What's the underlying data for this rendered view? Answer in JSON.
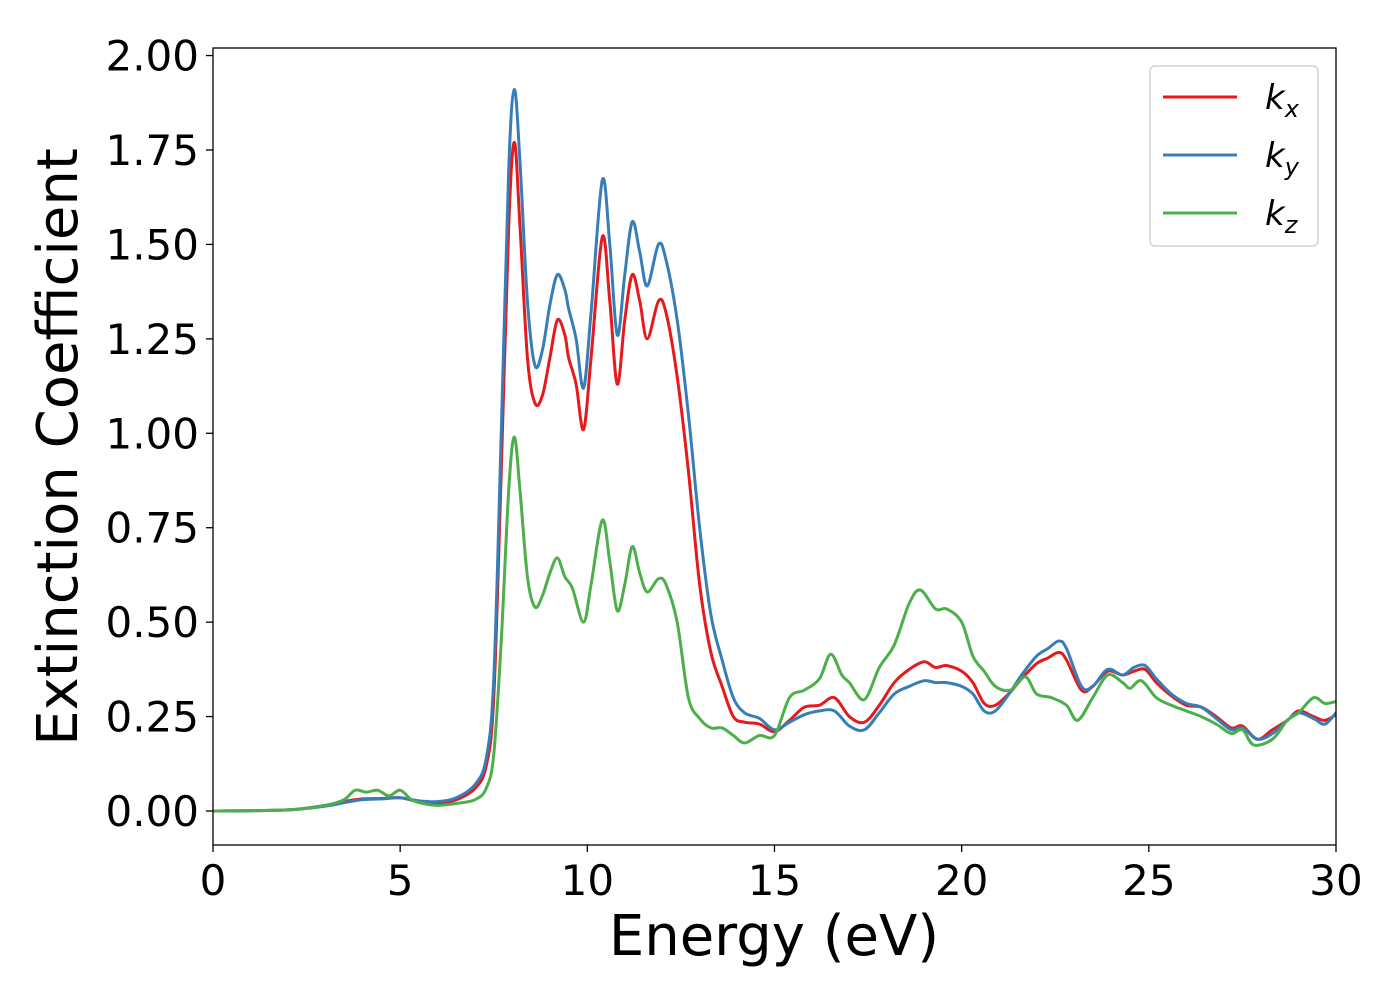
{
  "chart_data": {
    "type": "line",
    "title": "",
    "xlabel": "Energy (eV)",
    "ylabel": "Extinction Coefficient",
    "xlim": [
      0,
      30
    ],
    "ylim": [
      -0.09,
      2.02
    ],
    "xticks": [
      0,
      5,
      10,
      15,
      20,
      25,
      30
    ],
    "yticks": [
      0.0,
      0.25,
      0.5,
      0.75,
      1.0,
      1.25,
      1.5,
      1.75,
      2.0
    ],
    "xtick_labels": [
      "0",
      "5",
      "10",
      "15",
      "20",
      "25",
      "30"
    ],
    "ytick_labels": [
      "0.00",
      "0.25",
      "0.50",
      "0.75",
      "1.00",
      "1.25",
      "1.50",
      "1.75",
      "2.00"
    ],
    "grid": false,
    "legend_position": "top-right",
    "series": [
      {
        "name": "k_x",
        "base": "k",
        "sub": "x",
        "color": "#e41a1c",
        "points": [
          [
            0,
            0
          ],
          [
            2,
            0.003
          ],
          [
            3,
            0.015
          ],
          [
            3.5,
            0.025
          ],
          [
            4,
            0.032
          ],
          [
            4.5,
            0.033
          ],
          [
            5,
            0.035
          ],
          [
            5.5,
            0.025
          ],
          [
            6,
            0.022
          ],
          [
            6.5,
            0.03
          ],
          [
            7,
            0.06
          ],
          [
            7.3,
            0.12
          ],
          [
            7.5,
            0.3
          ],
          [
            7.7,
            0.9
          ],
          [
            7.9,
            1.55
          ],
          [
            8.05,
            1.77
          ],
          [
            8.2,
            1.55
          ],
          [
            8.4,
            1.2
          ],
          [
            8.6,
            1.08
          ],
          [
            8.8,
            1.1
          ],
          [
            9.0,
            1.2
          ],
          [
            9.2,
            1.3
          ],
          [
            9.4,
            1.26
          ],
          [
            9.5,
            1.2
          ],
          [
            9.7,
            1.13
          ],
          [
            9.9,
            1.01
          ],
          [
            10.1,
            1.2
          ],
          [
            10.4,
            1.52
          ],
          [
            10.6,
            1.35
          ],
          [
            10.8,
            1.13
          ],
          [
            11.0,
            1.3
          ],
          [
            11.2,
            1.42
          ],
          [
            11.4,
            1.35
          ],
          [
            11.6,
            1.25
          ],
          [
            11.9,
            1.35
          ],
          [
            12.1,
            1.32
          ],
          [
            12.4,
            1.15
          ],
          [
            12.7,
            0.9
          ],
          [
            13.0,
            0.6
          ],
          [
            13.3,
            0.42
          ],
          [
            13.6,
            0.33
          ],
          [
            13.9,
            0.25
          ],
          [
            14.2,
            0.235
          ],
          [
            14.6,
            0.23
          ],
          [
            15.0,
            0.21
          ],
          [
            15.4,
            0.24
          ],
          [
            15.8,
            0.275
          ],
          [
            16.2,
            0.28
          ],
          [
            16.6,
            0.3
          ],
          [
            17.0,
            0.25
          ],
          [
            17.4,
            0.235
          ],
          [
            17.8,
            0.28
          ],
          [
            18.2,
            0.34
          ],
          [
            18.6,
            0.375
          ],
          [
            19.0,
            0.395
          ],
          [
            19.3,
            0.38
          ],
          [
            19.6,
            0.385
          ],
          [
            20.0,
            0.37
          ],
          [
            20.3,
            0.34
          ],
          [
            20.6,
            0.285
          ],
          [
            20.9,
            0.28
          ],
          [
            21.3,
            0.315
          ],
          [
            21.6,
            0.35
          ],
          [
            22.0,
            0.39
          ],
          [
            22.3,
            0.405
          ],
          [
            22.6,
            0.42
          ],
          [
            22.8,
            0.4
          ],
          [
            23.2,
            0.32
          ],
          [
            23.5,
            0.33
          ],
          [
            23.9,
            0.37
          ],
          [
            24.3,
            0.36
          ],
          [
            24.6,
            0.37
          ],
          [
            24.9,
            0.375
          ],
          [
            25.2,
            0.34
          ],
          [
            25.6,
            0.305
          ],
          [
            26.0,
            0.28
          ],
          [
            26.4,
            0.275
          ],
          [
            26.8,
            0.25
          ],
          [
            27.2,
            0.22
          ],
          [
            27.5,
            0.225
          ],
          [
            27.9,
            0.19
          ],
          [
            28.3,
            0.215
          ],
          [
            28.7,
            0.24
          ],
          [
            29.0,
            0.265
          ],
          [
            29.4,
            0.25
          ],
          [
            29.7,
            0.24
          ],
          [
            30,
            0.255
          ]
        ]
      },
      {
        "name": "k_y",
        "base": "k",
        "sub": "y",
        "color": "#377eb8",
        "points": [
          [
            0,
            0
          ],
          [
            2,
            0.003
          ],
          [
            3,
            0.013
          ],
          [
            3.5,
            0.022
          ],
          [
            4,
            0.03
          ],
          [
            4.5,
            0.032
          ],
          [
            5,
            0.035
          ],
          [
            5.5,
            0.027
          ],
          [
            6,
            0.025
          ],
          [
            6.5,
            0.035
          ],
          [
            7,
            0.07
          ],
          [
            7.3,
            0.14
          ],
          [
            7.5,
            0.35
          ],
          [
            7.7,
            1.0
          ],
          [
            7.9,
            1.7
          ],
          [
            8.05,
            1.91
          ],
          [
            8.2,
            1.72
          ],
          [
            8.4,
            1.35
          ],
          [
            8.6,
            1.18
          ],
          [
            8.8,
            1.22
          ],
          [
            9.0,
            1.34
          ],
          [
            9.2,
            1.42
          ],
          [
            9.4,
            1.38
          ],
          [
            9.5,
            1.33
          ],
          [
            9.7,
            1.25
          ],
          [
            9.9,
            1.12
          ],
          [
            10.1,
            1.32
          ],
          [
            10.4,
            1.67
          ],
          [
            10.6,
            1.5
          ],
          [
            10.8,
            1.26
          ],
          [
            11.0,
            1.42
          ],
          [
            11.2,
            1.56
          ],
          [
            11.4,
            1.48
          ],
          [
            11.6,
            1.39
          ],
          [
            11.9,
            1.5
          ],
          [
            12.1,
            1.46
          ],
          [
            12.4,
            1.3
          ],
          [
            12.7,
            1.05
          ],
          [
            13.0,
            0.75
          ],
          [
            13.3,
            0.52
          ],
          [
            13.6,
            0.4
          ],
          [
            13.9,
            0.3
          ],
          [
            14.2,
            0.26
          ],
          [
            14.6,
            0.245
          ],
          [
            15.0,
            0.215
          ],
          [
            15.4,
            0.235
          ],
          [
            15.8,
            0.255
          ],
          [
            16.2,
            0.265
          ],
          [
            16.6,
            0.265
          ],
          [
            17.0,
            0.225
          ],
          [
            17.4,
            0.215
          ],
          [
            17.8,
            0.26
          ],
          [
            18.2,
            0.31
          ],
          [
            18.6,
            0.33
          ],
          [
            19.0,
            0.345
          ],
          [
            19.3,
            0.34
          ],
          [
            19.6,
            0.34
          ],
          [
            20.0,
            0.33
          ],
          [
            20.3,
            0.31
          ],
          [
            20.6,
            0.265
          ],
          [
            20.9,
            0.265
          ],
          [
            21.3,
            0.315
          ],
          [
            21.6,
            0.36
          ],
          [
            22.0,
            0.41
          ],
          [
            22.3,
            0.43
          ],
          [
            22.6,
            0.45
          ],
          [
            22.8,
            0.43
          ],
          [
            23.2,
            0.33
          ],
          [
            23.5,
            0.33
          ],
          [
            23.9,
            0.375
          ],
          [
            24.3,
            0.36
          ],
          [
            24.6,
            0.38
          ],
          [
            24.9,
            0.385
          ],
          [
            25.2,
            0.35
          ],
          [
            25.6,
            0.31
          ],
          [
            26.0,
            0.285
          ],
          [
            26.4,
            0.275
          ],
          [
            26.8,
            0.245
          ],
          [
            27.2,
            0.215
          ],
          [
            27.5,
            0.22
          ],
          [
            27.9,
            0.19
          ],
          [
            28.3,
            0.205
          ],
          [
            28.7,
            0.24
          ],
          [
            29.0,
            0.26
          ],
          [
            29.4,
            0.245
          ],
          [
            29.7,
            0.23
          ],
          [
            30,
            0.26
          ]
        ]
      },
      {
        "name": "k_z",
        "base": "k",
        "sub": "z",
        "color": "#4daf4a",
        "points": [
          [
            0,
            0
          ],
          [
            2,
            0.003
          ],
          [
            3,
            0.015
          ],
          [
            3.5,
            0.03
          ],
          [
            3.8,
            0.055
          ],
          [
            4.1,
            0.05
          ],
          [
            4.4,
            0.055
          ],
          [
            4.7,
            0.04
          ],
          [
            5.0,
            0.055
          ],
          [
            5.3,
            0.03
          ],
          [
            5.6,
            0.02
          ],
          [
            6,
            0.015
          ],
          [
            6.5,
            0.02
          ],
          [
            7,
            0.03
          ],
          [
            7.3,
            0.06
          ],
          [
            7.5,
            0.15
          ],
          [
            7.7,
            0.45
          ],
          [
            7.9,
            0.85
          ],
          [
            8.05,
            0.99
          ],
          [
            8.2,
            0.85
          ],
          [
            8.4,
            0.62
          ],
          [
            8.6,
            0.54
          ],
          [
            8.8,
            0.57
          ],
          [
            9.0,
            0.63
          ],
          [
            9.2,
            0.67
          ],
          [
            9.4,
            0.62
          ],
          [
            9.6,
            0.59
          ],
          [
            9.9,
            0.5
          ],
          [
            10.1,
            0.6
          ],
          [
            10.4,
            0.77
          ],
          [
            10.6,
            0.66
          ],
          [
            10.8,
            0.53
          ],
          [
            11.0,
            0.6
          ],
          [
            11.2,
            0.7
          ],
          [
            11.4,
            0.63
          ],
          [
            11.6,
            0.58
          ],
          [
            11.9,
            0.615
          ],
          [
            12.1,
            0.6
          ],
          [
            12.4,
            0.5
          ],
          [
            12.7,
            0.3
          ],
          [
            13.0,
            0.245
          ],
          [
            13.3,
            0.22
          ],
          [
            13.6,
            0.22
          ],
          [
            13.9,
            0.2
          ],
          [
            14.2,
            0.18
          ],
          [
            14.6,
            0.2
          ],
          [
            15.0,
            0.2
          ],
          [
            15.4,
            0.3
          ],
          [
            15.8,
            0.32
          ],
          [
            16.2,
            0.35
          ],
          [
            16.5,
            0.415
          ],
          [
            16.8,
            0.36
          ],
          [
            17.0,
            0.34
          ],
          [
            17.4,
            0.295
          ],
          [
            17.8,
            0.38
          ],
          [
            18.2,
            0.44
          ],
          [
            18.6,
            0.55
          ],
          [
            18.9,
            0.585
          ],
          [
            19.3,
            0.535
          ],
          [
            19.6,
            0.535
          ],
          [
            20.0,
            0.5
          ],
          [
            20.3,
            0.41
          ],
          [
            20.6,
            0.37
          ],
          [
            20.9,
            0.33
          ],
          [
            21.3,
            0.32
          ],
          [
            21.7,
            0.355
          ],
          [
            22.0,
            0.31
          ],
          [
            22.4,
            0.3
          ],
          [
            22.8,
            0.28
          ],
          [
            23.1,
            0.24
          ],
          [
            23.5,
            0.3
          ],
          [
            23.9,
            0.36
          ],
          [
            24.3,
            0.34
          ],
          [
            24.5,
            0.325
          ],
          [
            24.8,
            0.345
          ],
          [
            25.2,
            0.3
          ],
          [
            25.6,
            0.28
          ],
          [
            26.0,
            0.265
          ],
          [
            26.4,
            0.25
          ],
          [
            26.8,
            0.23
          ],
          [
            27.2,
            0.205
          ],
          [
            27.5,
            0.215
          ],
          [
            27.8,
            0.175
          ],
          [
            28.3,
            0.19
          ],
          [
            28.7,
            0.24
          ],
          [
            29.0,
            0.26
          ],
          [
            29.4,
            0.3
          ],
          [
            29.7,
            0.285
          ],
          [
            30,
            0.29
          ]
        ]
      }
    ]
  }
}
